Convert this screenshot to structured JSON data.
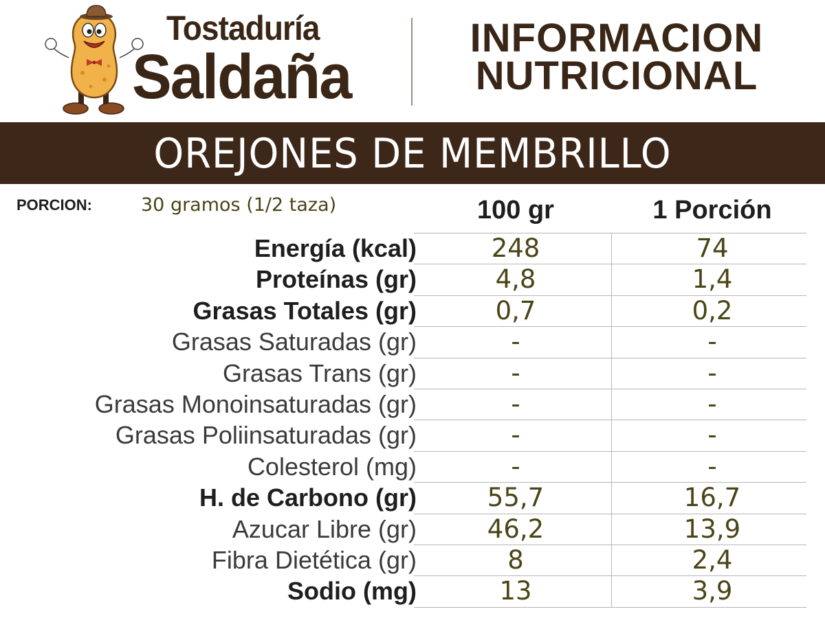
{
  "brand": {
    "line1": "Tostaduría",
    "line2": "Saldaña"
  },
  "header": {
    "title_line1": "INFORMACION",
    "title_line2": "NUTRICIONAL"
  },
  "product": {
    "name": "OREJONES DE MEMBRILLO"
  },
  "portion": {
    "label": "PORCION:",
    "value": "30 gramos (1/2 taza)"
  },
  "columns": {
    "per_100": "100 gr",
    "per_portion": "1 Porción"
  },
  "rows": [
    {
      "label": "Energía (kcal)",
      "bold": true,
      "per_100": "248",
      "per_portion": "74"
    },
    {
      "label": "Proteínas (gr)",
      "bold": true,
      "per_100": "4,8",
      "per_portion": "1,4"
    },
    {
      "label": "Grasas Totales (gr)",
      "bold": true,
      "per_100": "0,7",
      "per_portion": "0,2"
    },
    {
      "label": "Grasas Saturadas (gr)",
      "bold": false,
      "per_100": "-",
      "per_portion": "-"
    },
    {
      "label": "Grasas Trans (gr)",
      "bold": false,
      "per_100": "-",
      "per_portion": "-"
    },
    {
      "label": "Grasas Monoinsaturadas (gr)",
      "bold": false,
      "per_100": "-",
      "per_portion": "-"
    },
    {
      "label": "Grasas Poliinsaturadas (gr)",
      "bold": false,
      "per_100": "-",
      "per_portion": "-"
    },
    {
      "label": "Colesterol (mg)",
      "bold": false,
      "per_100": "-",
      "per_portion": "-"
    },
    {
      "label": "H. de Carbono (gr)",
      "bold": true,
      "per_100": "55,7",
      "per_portion": "16,7"
    },
    {
      "label": "Azucar Libre (gr)",
      "bold": false,
      "per_100": "46,2",
      "per_portion": "13,9"
    },
    {
      "label": "Fibra Dietética (gr)",
      "bold": false,
      "per_100": "8",
      "per_portion": "2,4"
    },
    {
      "label": "Sodio (mg)",
      "bold": true,
      "per_100": "13",
      "per_portion": "3,9"
    }
  ],
  "colors": {
    "banner_bg": "#3d2719",
    "brand_text": "#3a2616",
    "value_text": "#4b4416"
  }
}
